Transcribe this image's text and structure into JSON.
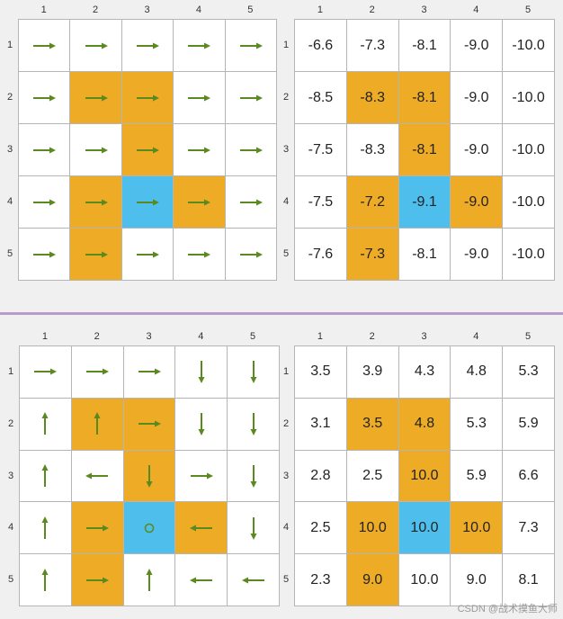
{
  "axis_labels": [
    "1",
    "2",
    "3",
    "4",
    "5"
  ],
  "colors": {
    "orange": "#eeab25",
    "blue": "#4ebeed",
    "arrow": "#5a8a1f",
    "grid_line": "#b5b5b5"
  },
  "cell_colors": [
    [
      "w",
      "w",
      "w",
      "w",
      "w"
    ],
    [
      "w",
      "o",
      "o",
      "w",
      "w"
    ],
    [
      "w",
      "w",
      "o",
      "w",
      "w"
    ],
    [
      "w",
      "o",
      "b",
      "o",
      "w"
    ],
    [
      "w",
      "o",
      "w",
      "w",
      "w"
    ]
  ],
  "top": {
    "policy_icons": [
      [
        "right-arrow-icon",
        "right-arrow-icon",
        "right-arrow-icon",
        "right-arrow-icon",
        "right-arrow-icon"
      ],
      [
        "right-arrow-icon",
        "right-arrow-icon",
        "right-arrow-icon",
        "right-arrow-icon",
        "right-arrow-icon"
      ],
      [
        "right-arrow-icon",
        "right-arrow-icon",
        "right-arrow-icon",
        "right-arrow-icon",
        "right-arrow-icon"
      ],
      [
        "right-arrow-icon",
        "right-arrow-icon",
        "right-arrow-icon",
        "right-arrow-icon",
        "right-arrow-icon"
      ],
      [
        "right-arrow-icon",
        "right-arrow-icon",
        "right-arrow-icon",
        "right-arrow-icon",
        "right-arrow-icon"
      ]
    ],
    "values": [
      [
        "-6.6",
        "-7.3",
        "-8.1",
        "-9.0",
        "-10.0"
      ],
      [
        "-8.5",
        "-8.3",
        "-8.1",
        "-9.0",
        "-10.0"
      ],
      [
        "-7.5",
        "-8.3",
        "-8.1",
        "-9.0",
        "-10.0"
      ],
      [
        "-7.5",
        "-7.2",
        "-9.1",
        "-9.0",
        "-10.0"
      ],
      [
        "-7.6",
        "-7.3",
        "-8.1",
        "-9.0",
        "-10.0"
      ]
    ]
  },
  "bottom": {
    "policy_icons": [
      [
        "right-arrow-icon",
        "right-arrow-icon",
        "right-arrow-icon",
        "down-arrow-icon",
        "down-arrow-icon"
      ],
      [
        "up-arrow-icon",
        "up-arrow-icon",
        "right-arrow-icon",
        "down-arrow-icon",
        "down-arrow-icon"
      ],
      [
        "up-arrow-icon",
        "left-arrow-icon",
        "down-arrow-icon",
        "right-arrow-icon",
        "down-arrow-icon"
      ],
      [
        "up-arrow-icon",
        "right-arrow-icon",
        "stay-circle-icon",
        "left-arrow-icon",
        "down-arrow-icon"
      ],
      [
        "up-arrow-icon",
        "right-arrow-icon",
        "up-arrow-icon",
        "left-arrow-icon",
        "left-arrow-icon"
      ]
    ],
    "values": [
      [
        "3.5",
        "3.9",
        "4.3",
        "4.8",
        "5.3"
      ],
      [
        "3.1",
        "3.5",
        "4.8",
        "5.3",
        "5.9"
      ],
      [
        "2.8",
        "2.5",
        "10.0",
        "5.9",
        "6.6"
      ],
      [
        "2.5",
        "10.0",
        "10.0",
        "10.0",
        "7.3"
      ],
      [
        "2.3",
        "9.0",
        "10.0",
        "9.0",
        "8.1"
      ]
    ]
  },
  "watermark": "CSDN @战术摸鱼大师"
}
